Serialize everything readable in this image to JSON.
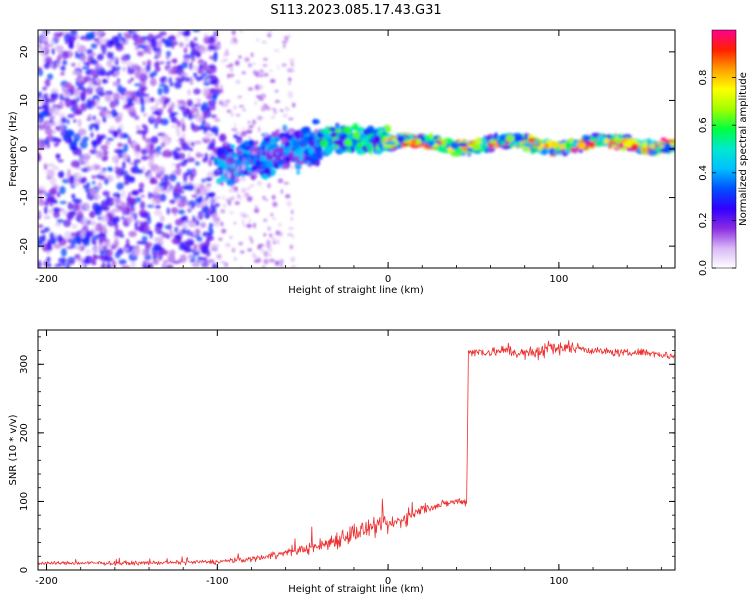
{
  "figure": {
    "title": "S113.2023.085.17.43.G31"
  },
  "chart_data": [
    {
      "type": "heatmap",
      "title": "S113.2023.085.17.43.G31",
      "xlabel": "Height of straight line (km)",
      "ylabel": "Frequency (Hz)",
      "xlim": [
        -205,
        168
      ],
      "ylim": [
        -24.5,
        24.5
      ],
      "xticks": [
        -200,
        -100,
        0,
        100
      ],
      "yticks": [
        -20,
        -10,
        0,
        10,
        20
      ],
      "grid": false,
      "colorbar": {
        "label": "Normalized spectral amplitude",
        "range": [
          0,
          1
        ],
        "ticks": [
          0.0,
          0.2,
          0.4,
          0.6,
          0.8
        ],
        "colors": [
          "#ffffff",
          "#d9b8f5",
          "#8a2be2",
          "#3000ff",
          "#0050ff",
          "#00c0ff",
          "#00e8d0",
          "#00ff40",
          "#a0ff00",
          "#ffff00",
          "#ffa000",
          "#ff2000",
          "#ff0090"
        ]
      },
      "regions": [
        {
          "x_start": -205,
          "x_end": -100,
          "freq_center": 0,
          "freq_halfwidth": 24,
          "amplitude": 0.15,
          "description_level": "scattered low-amplitude noise"
        },
        {
          "x_start": -100,
          "x_end": -40,
          "freq_center": -3,
          "freq_halfwidth": 5,
          "amplitude": 0.35
        },
        {
          "x_start": -40,
          "x_end": 0,
          "freq_center": 2,
          "freq_halfwidth": 3,
          "amplitude": 0.5
        },
        {
          "x_start": 0,
          "x_end": 168,
          "freq_center": 1,
          "freq_halfwidth": 1.5,
          "amplitude": 0.9
        }
      ]
    },
    {
      "type": "line",
      "xlabel": "Height of straight line (km)",
      "ylabel": "SNR (10 * v/v)",
      "xlim": [
        -205,
        168
      ],
      "ylim": [
        0,
        350
      ],
      "xticks": [
        -200,
        -100,
        0,
        100
      ],
      "yticks": [
        0,
        100,
        200,
        300
      ],
      "grid": false,
      "color": "#ee3030",
      "series": [
        {
          "x": [
            -205,
            -180,
            -150,
            -120,
            -100,
            -80,
            -60,
            -50,
            -40,
            -30,
            -20,
            -10,
            0,
            10,
            20,
            30,
            40,
            46,
            47,
            60,
            70,
            80,
            90,
            95,
            100,
            110,
            120,
            130,
            140,
            150,
            160,
            168
          ],
          "y": [
            10,
            10,
            10,
            11,
            12,
            16,
            25,
            30,
            35,
            45,
            55,
            60,
            65,
            75,
            88,
            95,
            100,
            100,
            318,
            318,
            320,
            315,
            318,
            328,
            322,
            325,
            320,
            318,
            316,
            318,
            314,
            312
          ],
          "noise": [
            4,
            4,
            4,
            4,
            5,
            6,
            8,
            10,
            15,
            20,
            22,
            20,
            18,
            15,
            10,
            8,
            8,
            8,
            10,
            10,
            12,
            12,
            18,
            15,
            14,
            10,
            8,
            8,
            8,
            8,
            8,
            8
          ]
        }
      ]
    }
  ]
}
